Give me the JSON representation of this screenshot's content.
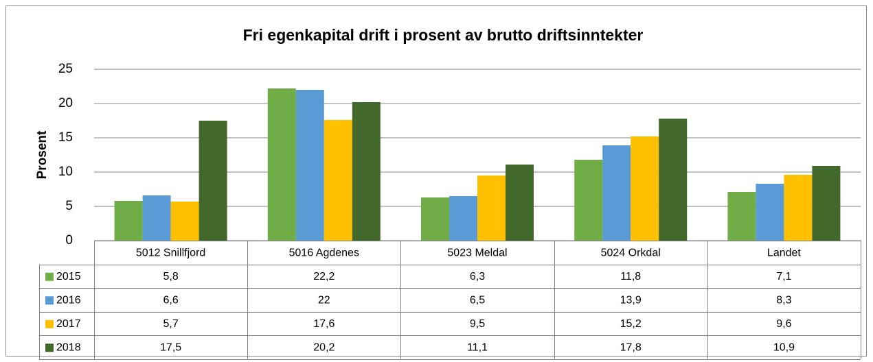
{
  "chart_data": {
    "type": "bar",
    "title": "Fri egenkapital drift i prosent av brutto driftsinntekter",
    "y_label": "Prosent",
    "categories": [
      "5012 Snillfjord",
      "5016 Agdenes",
      "5023 Meldal",
      "5024 Orkdal",
      "Landet"
    ],
    "series": [
      {
        "name": "2015",
        "color": "#70ad47",
        "values": [
          5.8,
          22.2,
          6.3,
          11.8,
          7.1
        ],
        "value_labels": [
          "5,8",
          "22,2",
          "6,3",
          "11,8",
          "7,1"
        ]
      },
      {
        "name": "2016",
        "color": "#5b9bd5",
        "values": [
          6.6,
          22,
          6.5,
          13.9,
          8.3
        ],
        "value_labels": [
          "6,6",
          "22",
          "6,5",
          "13,9",
          "8,3"
        ]
      },
      {
        "name": "2017",
        "color": "#ffc000",
        "values": [
          5.7,
          17.6,
          9.5,
          15.2,
          9.6
        ],
        "value_labels": [
          "5,7",
          "17,6",
          "9,5",
          "15,2",
          "9,6"
        ]
      },
      {
        "name": "2018",
        "color": "#43682b",
        "values": [
          17.5,
          20.2,
          11.1,
          17.8,
          10.9
        ],
        "value_labels": [
          "17,5",
          "20,2",
          "11,1",
          "17,8",
          "10,9"
        ]
      }
    ],
    "ylim": [
      0,
      25
    ],
    "yticks": [
      0,
      5,
      10,
      15,
      20,
      25
    ],
    "grid": true,
    "data_table": true
  }
}
